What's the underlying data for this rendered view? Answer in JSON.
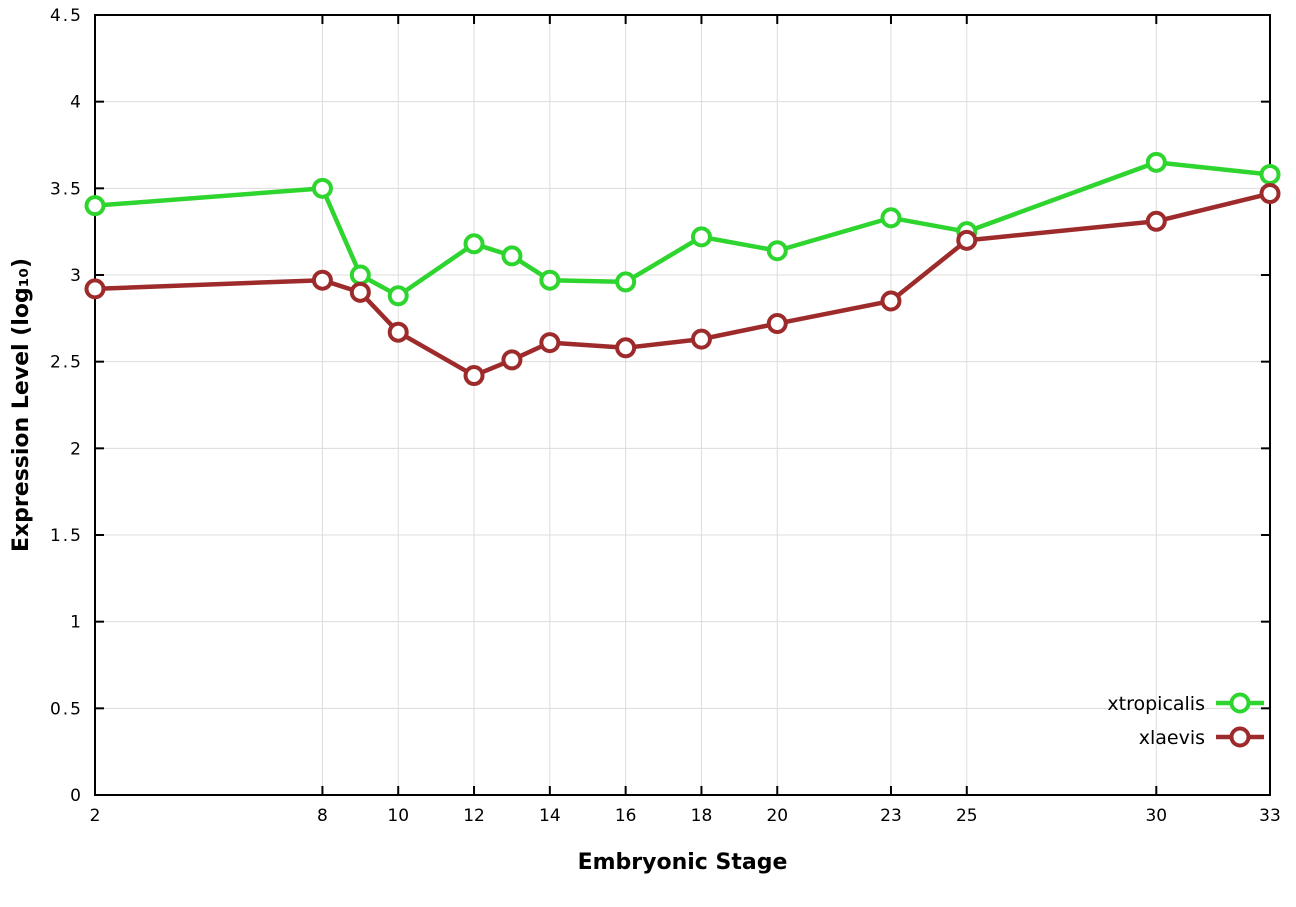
{
  "chart_data": {
    "type": "line",
    "title": "",
    "xlabel": "Embryonic Stage",
    "ylabel": "Expression Level (log₁₀)",
    "xlim": [
      2,
      33
    ],
    "ylim": [
      0,
      4.5
    ],
    "xticks": [
      2,
      8,
      10,
      12,
      14,
      16,
      18,
      20,
      23,
      25,
      30,
      33
    ],
    "yticks": [
      0,
      0.5,
      1,
      1.5,
      2,
      2.5,
      3,
      3.5,
      4,
      4.5
    ],
    "grid": true,
    "legend_position": "bottom-right",
    "x": [
      2,
      8,
      9,
      10,
      12,
      13,
      14,
      16,
      18,
      20,
      23,
      25,
      30,
      33
    ],
    "series": [
      {
        "name": "xtropicalis",
        "color": "#2ed52e",
        "values": [
          3.4,
          3.5,
          3.0,
          2.88,
          3.18,
          3.11,
          2.97,
          2.96,
          3.22,
          3.14,
          3.33,
          3.25,
          3.65,
          3.58
        ]
      },
      {
        "name": "xlaevis",
        "color": "#9e2b2b",
        "values": [
          2.92,
          2.97,
          2.9,
          2.67,
          2.42,
          2.51,
          2.61,
          2.58,
          2.63,
          2.72,
          2.85,
          3.2,
          3.31,
          3.47
        ]
      }
    ]
  },
  "style": {
    "grid_color": "#dcdcdc",
    "axis_color": "#000000",
    "marker_fill": "#ffffff",
    "background": "#ffffff"
  }
}
